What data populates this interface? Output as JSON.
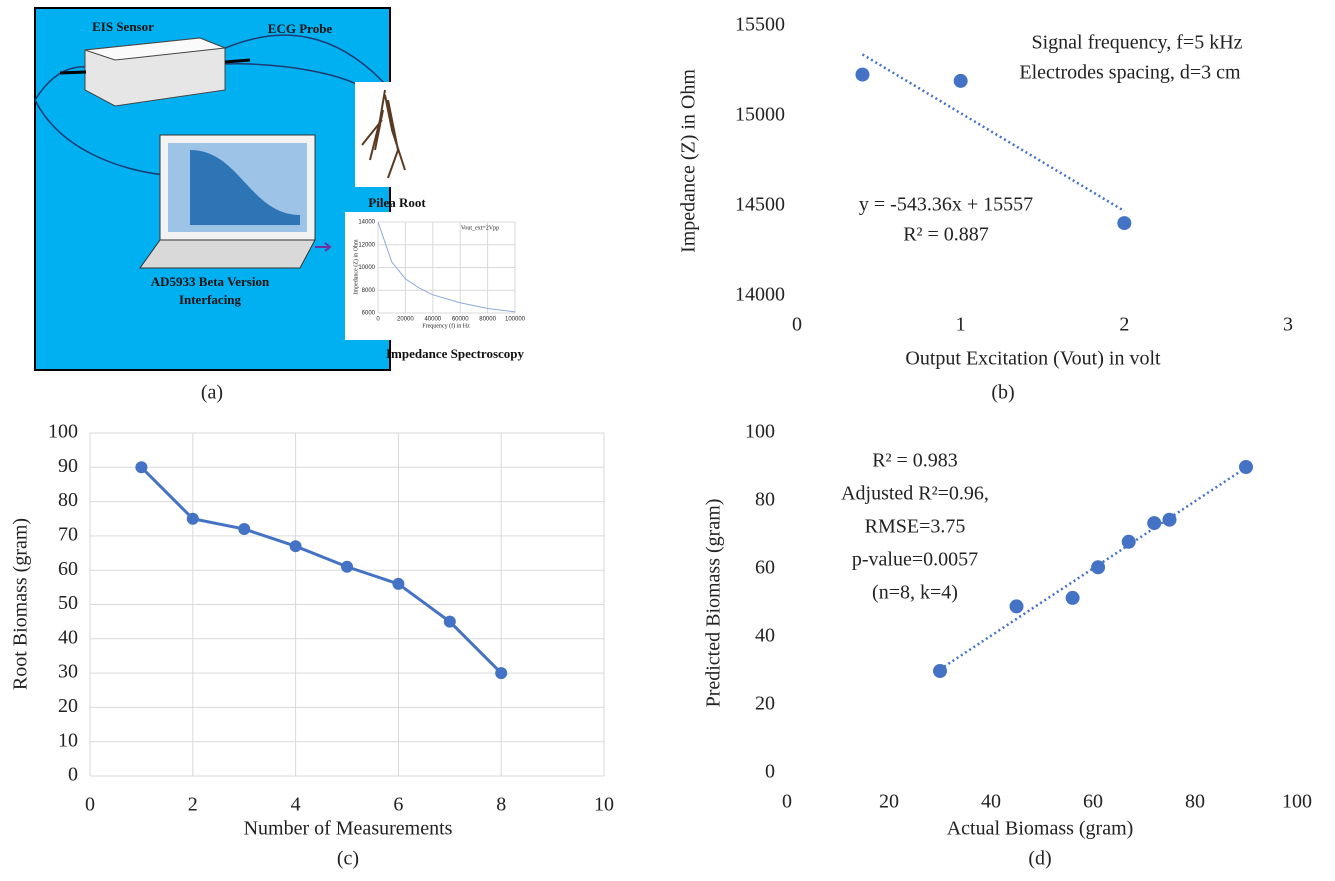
{
  "diagram": {
    "labels": [
      "EIS Sensor",
      "ECG Probe",
      "Pilea Root",
      "AD5933 Beta Version",
      "Interfacing",
      "Impedance Spectroscopy"
    ],
    "caption": "(a)"
  },
  "chart_data": [
    {
      "type": "line",
      "x": [
        0,
        10000,
        20000,
        30000,
        40000,
        60000,
        80000,
        100000
      ],
      "series": [
        {
          "name": "Vout_ext=2Vpp",
          "color": "#8ea9db",
          "values": [
            14000,
            10500,
            9000,
            8200,
            7600,
            6900,
            6400,
            6100
          ]
        }
      ],
      "xlim": [
        0,
        100000
      ],
      "xticks": [
        0,
        20000,
        40000,
        60000,
        80000,
        100000
      ],
      "ylim": [
        6000,
        14000
      ],
      "yticks": [
        6000,
        8000,
        10000,
        12000,
        14000
      ],
      "xlabel": "Frequency (f) in Hz",
      "ylabel": "Impedance (Z) in Ohm",
      "grid": true,
      "markers": false
    },
    {
      "type": "scatter",
      "x": [
        0.4,
        1,
        2
      ],
      "series": [
        {
          "color": "#4472c4",
          "values": [
            15230,
            15195,
            14405
          ]
        }
      ],
      "xlim": [
        0,
        3
      ],
      "xticks": [
        0,
        1,
        2,
        3
      ],
      "ylim": [
        14000,
        15500
      ],
      "yticks": [
        14000,
        14500,
        15000,
        15500
      ],
      "xlabel": "Output Excitation (Vout) in volt",
      "ylabel": "Impedance (Z) in Ohm",
      "grid": false,
      "trendline": true,
      "annotations": [
        "Signal frequency, f=5 kHz",
        "Electrodes spacing, d=3 cm",
        "y = -543.36x + 15557",
        "R² = 0.887"
      ],
      "caption": "(b)"
    },
    {
      "type": "line",
      "x": [
        1,
        2,
        3,
        4,
        5,
        6,
        7,
        8
      ],
      "series": [
        {
          "color": "#4472c4",
          "values": [
            90,
            75,
            72,
            67,
            61,
            56,
            45,
            30
          ]
        }
      ],
      "xlim": [
        0,
        10
      ],
      "xticks": [
        0,
        2,
        4,
        6,
        8,
        10
      ],
      "ylim": [
        0,
        100
      ],
      "yticks": [
        0,
        10,
        20,
        30,
        40,
        50,
        60,
        70,
        80,
        90,
        100
      ],
      "xlabel": "Number of Measurements",
      "ylabel": "Root Biomass (gram)",
      "grid": true,
      "markers": true,
      "caption": "(c)"
    },
    {
      "type": "scatter",
      "x": [
        30,
        45,
        56,
        61,
        67,
        72,
        75,
        90
      ],
      "series": [
        {
          "color": "#4472c4",
          "values": [
            30,
            49,
            51.5,
            60.5,
            68,
            73.5,
            74.5,
            90
          ]
        }
      ],
      "xlim": [
        0,
        100
      ],
      "xticks": [
        0,
        20,
        40,
        60,
        80,
        100
      ],
      "ylim": [
        0,
        100
      ],
      "yticks": [
        0,
        20,
        40,
        60,
        80,
        100
      ],
      "xlabel": "Actual Biomass (gram)",
      "ylabel": "Predicted Biomass (gram)",
      "grid": false,
      "trendline": true,
      "annotations": [
        "R² = 0.983",
        "Adjusted R²=0.96,",
        "RMSE=3.75",
        "p-value=0.0057",
        "(n=8, k=4)"
      ],
      "caption": "(d)"
    }
  ]
}
